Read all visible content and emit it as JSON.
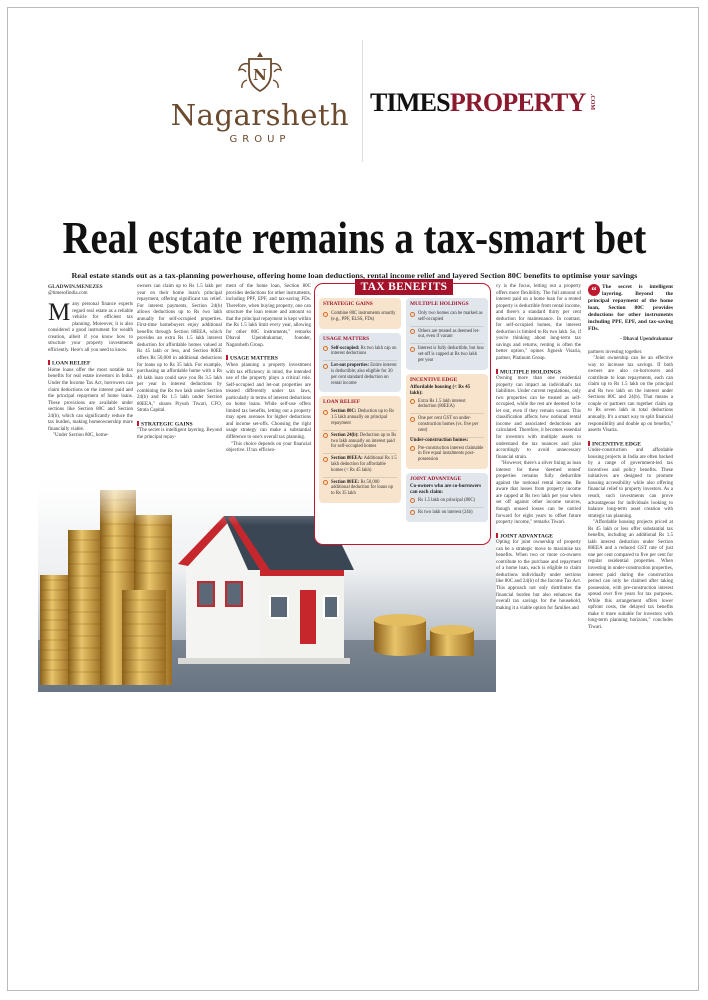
{
  "header": {
    "brand_left": {
      "name": "Nagarsheth",
      "sub": "GROUP",
      "crest_letter": "N",
      "color": "#6b4a2e"
    },
    "brand_right": {
      "part1": "TIMES",
      "part2": "PROPERTY",
      "suffix": ".COM",
      "color_part1": "#111111",
      "color_part2": "#8b1a2f"
    }
  },
  "article": {
    "headline": "Real estate remains a tax-smart bet",
    "subhead": "Real estate stands out as a tax-planning powerhouse, offering home loan deductions, rental income relief and layered Section 80C benefits to optimise your savings",
    "byline": "GLADWIN.MENEZES",
    "byline_email": "@timesofindia.com",
    "accent_color": "#c0182e",
    "columns": [
      [
        {
          "type": "dropcap",
          "cap": "M",
          "text": "any personal finance experts regard real estate as a reliable vehicle for efficient tax planning. Moreover, it is also considered a good instrument for wealth creation, albeit if you know how to structure your property investments efficiently. Here's all you need to know."
        },
        {
          "type": "h",
          "text": "LOAN RELIEF"
        },
        {
          "type": "p0",
          "text": "Home loans offer the most notable tax benefits for real estate investors in India. Under the Income Tax Act, borrowers can claim deductions on the interest paid and the principal repayment of home loans. These provisions are available under sections like Section 80C and Section 24(b), which can significantly reduce the tax burden, making homeownership more financially viable."
        },
        {
          "type": "p",
          "text": "\"Under Section 80C, home-"
        }
      ],
      [
        {
          "type": "p0",
          "text": "owners can claim up to Rs 1.5 lakh per year on their home loan's principal repayment, offering significant tax relief. For interest payments, Section 24(b) allows deductions up to Rs two lakh annually for self-occupied properties. First-time homebuyers enjoy additional benefits through Section 80EEA, which provides an extra Rs 1.5 lakh interest deduction for affordable homes valued at Rs 45 lakh or less, and Section 80EE offers Rs 50,000 in additional deductions for loans up to Rs 35 lakh. For example, purchasing an affordable home with a Rs 40 lakh loan could save you Rs 3.5 lakh per year in interest deductions by combining the Rs two lakh under Section 24(b) and Rs 1.5 lakh under Section 80EEA,\" shares Piyush Tiwari, CFO, Strata Capital."
        },
        {
          "type": "h",
          "text": "STRATEGIC GAINS"
        },
        {
          "type": "p0",
          "text": "\"The secret is intelligent layering. Beyond the principal repay-"
        }
      ],
      [
        {
          "type": "p0",
          "text": "ment of the home loan, Section 80C provides deductions for other instruments, including PPF, EPF, and tax-saving FDs. Therefore, when buying property, one can structure the loan tenure and amount so that the principal repayment is kept within the Rs 1.5 lakh limit every year, allowing for other 80C instruments,\" remarks Dhaval Upendrakumar, founder, Nagarsheth Group."
        },
        {
          "type": "h",
          "text": "USAGE MATTERS"
        },
        {
          "type": "p0",
          "text": "When planning a property investment with tax efficiency in mind, the intended use of the property plays a critical role. Self-occupied and let-out properties are treated differently under tax laws, particularly in terms of interest deductions on home loans. While self-use offers limited tax benefits, letting out a property may open avenues for higher deductions and income set-offs. Choosing the right usage strategy can make a substantial difference to one's overall tax planning."
        },
        {
          "type": "p",
          "text": "\"This choice depends on your financial objective. If tax efficien-"
        }
      ],
      [
        {
          "type": "p0",
          "text": "cy is the focus, letting out a property offers more flexibility. The full amount of interest paid on a home loan for a rented property is deductible from rental income, and there's a standard thirty per cent deduction for maintenance. In contrast, for self-occupied homes, the interest deduction is limited to Rs two lakh. So, if you're thinking about long-term tax savings and returns, renting is often the better option,\" opines Jignesh Visaria, partner, Platinum Group."
        },
        {
          "type": "h",
          "text": "MULTIPLE HOLDINGS"
        },
        {
          "type": "p0",
          "text": "Owning more than one residential property can impact an individual's tax liabilities. Under current regulations, only two properties can be treated as self-occupied, while the rest are deemed to be let out, even if they remain vacant. This classification affects how notional rental income and associated deductions are calculated. Therefore, it becomes essential for investors with multiple assets to understand the tax nuances and plan accordingly to avoid unnecessary financial strain."
        },
        {
          "type": "p",
          "text": "\"However, there's a silver lining as loan interest for these 'deemed rented' properties remains fully deductible against the notional rental income. Be aware that losses from property income are capped at Rs two lakh per year when set off against other income sources, though unused losses can be carried forward for eight years to offset future property income,\" remarks Tiwari."
        },
        {
          "type": "h",
          "text": "JOINT ADVANTAGE"
        },
        {
          "type": "p0",
          "text": "Opting for joint ownership of property can be a strategic move to maximise tax benefits. When two or more co-owners contribute to the purchase and repayment of a home loan, each is eligible to claim deductions individually under sections like 80C and 24(b) of the Income Tax Act. This approach not only distributes the financial burden but also enhances the overall tax savings for the household, making it a viable option for families and"
        }
      ],
      [
        {
          "type": "pull",
          "text": "The secret is intelligent layering. Beyond the principal repayment of the home loan, Section 80C provides deductions for other instruments including PPF, EPF, and tax-saving FDs.",
          "attribution": "- Dhaval Upendrakumar"
        },
        {
          "type": "p0",
          "text": "partners investing together."
        },
        {
          "type": "p",
          "text": "\"Joint ownership can be an effective way to increase tax savings. If both owners are also co-borrowers and contribute to loan repayments, each can claim up to Rs 1.5 lakh on the principal and Rs two lakh on the interest under Sections 80C and 24(b). That means a couple or partners can together claim up to Rs seven lakh in total deductions annually. It's a smart way to split financial responsibility and double up on benefits,\" asserts Visaria."
        },
        {
          "type": "h",
          "text": "INCENTIVE EDGE"
        },
        {
          "type": "p0",
          "text": "Under-construction and affordable housing projects in India are often backed by a range of government-led tax incentives and policy benefits. These initiatives are designed to promote housing accessibility while also offering financial relief to property investors. As a result, such investments can prove advantageous for individuals looking to balance long-term asset creation with strategic tax planning."
        },
        {
          "type": "p",
          "text": "\"Affordable housing projects priced at Rs 45 lakh or less offer substantial tax benefits, including an additional Rs 1.5 lakh interest deduction under Section 80EEA and a reduced GST rate of just one per cent compared to five per cent for regular residential properties. When investing in under-construction properties, interest paid during the construction period can only be claimed after taking possession, with pre-construction interest spread over five years for tax purposes. While this arrangement offers lower upfront costs, the delayed tax benefits make it more suitable for investors with long-term planning horizons,\" concludes Tiwari."
        }
      ]
    ]
  },
  "tax_benefits": {
    "title": "TAX BENEFITS",
    "left": [
      {
        "heading": "STRATEGIC GAINS",
        "tone": "peach",
        "items": [
          {
            "label": "",
            "text": "Combine 80C instruments smartly (e.g., PPF, ELSS, FDs)"
          }
        ]
      },
      {
        "heading": "USAGE MATTERS",
        "tone": "blue",
        "items": [
          {
            "label": "Self-occupied:",
            "text": "Rs two lakh cap on interest deductions"
          },
          {
            "label": "Let-out properties:",
            "text": "Entire interest is deductible; also eligible for 30 per cent standard deduction on rental income"
          }
        ]
      },
      {
        "heading": "LOAN RELIEF",
        "tone": "peach",
        "items": [
          {
            "label": "Section 80C:",
            "text": "Deduction up to Rs 1.5 lakh annually on principal repayment"
          },
          {
            "label": "Section 24(b):",
            "text": "Deduction up to Rs two lakh annually on interest paid for self-occupied homes"
          },
          {
            "label": "Section 80EEA:",
            "text": "Additional Rs 1.5 lakh deduction for affordable homes (< Rs 45 lakh)"
          },
          {
            "label": "Section 80EE:",
            "text": "Rs 50,000 additional deduction for loans up to Rs 35 lakh"
          }
        ]
      }
    ],
    "right": [
      {
        "heading": "MULTIPLE HOLDINGS",
        "tone": "blue",
        "items": [
          {
            "label": "",
            "text": "Only two homes can be marked as self-occupied"
          },
          {
            "label": "",
            "text": "Others are treated as deemed let-out, even if vacant"
          },
          {
            "label": "",
            "text": "Interest is fully deductible, but loss set-off is capped at Rs two lakh per year"
          }
        ]
      },
      {
        "heading": "INCENTIVE EDGE",
        "tone": "peach",
        "subgroups": [
          {
            "sub": "Affordable housing (< Rs 45 lakh):",
            "items": [
              {
                "label": "",
                "text": "Extra Rs 1.5 lakh interest deduction (80EEA)"
              },
              {
                "label": "",
                "text": "One per cent GST on under-construction homes (vs. five per cent)"
              }
            ]
          },
          {
            "sub": "Under-construction homes:",
            "items": [
              {
                "label": "",
                "text": "Pre-construction interest claimable in five equal instalments post-possession"
              }
            ]
          }
        ]
      },
      {
        "heading": "JOINT ADVANTAGE",
        "tone": "blue",
        "subgroups": [
          {
            "sub": "Co-owners who are co-borrowers can each claim:",
            "items": [
              {
                "label": "",
                "text": "Rs 1.5 lakh on principal (80C)"
              },
              {
                "label": "",
                "text": "Rs two lakh on interest (24b)"
              }
            ]
          }
        ]
      }
    ]
  },
  "image": {
    "icon": "house-and-coins-photo"
  }
}
